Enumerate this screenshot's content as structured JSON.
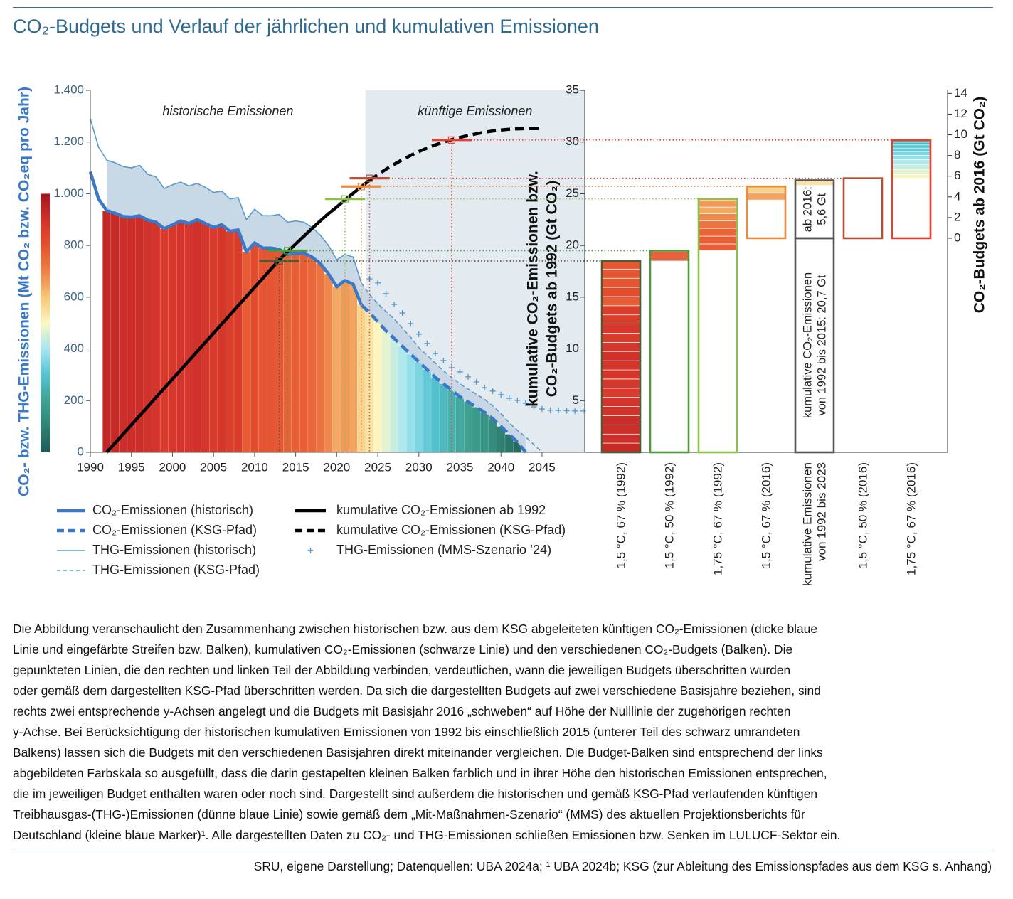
{
  "title": "CO₂-Budgets und Verlauf der jährlichen und kumulativen Emissionen",
  "chart_data": [
    {
      "type": "line",
      "ylabel": "CO₂- bzw. THG-Emissionen (Mt CO₂ bzw. CO₂eq pro Jahr)",
      "annotations": [
        "historische Emissionen",
        "künftige Emissionen"
      ],
      "x": [
        1990,
        1991,
        1992,
        1993,
        1994,
        1995,
        1996,
        1997,
        1998,
        1999,
        2000,
        2001,
        2002,
        2003,
        2004,
        2005,
        2006,
        2007,
        2008,
        2009,
        2010,
        2011,
        2012,
        2013,
        2014,
        2015,
        2016,
        2017,
        2018,
        2019,
        2020,
        2021,
        2022,
        2023,
        2024,
        2025,
        2026,
        2027,
        2028,
        2029,
        2030,
        2031,
        2032,
        2033,
        2034,
        2035,
        2036,
        2037,
        2038,
        2039,
        2040,
        2041,
        2042,
        2043,
        2044,
        2045,
        2046,
        2047,
        2048,
        2049,
        2050
      ],
      "xlim": [
        1990,
        2050.2
      ],
      "xticks": [
        1990,
        1995,
        2000,
        2005,
        2010,
        2015,
        2020,
        2025,
        2030,
        2035,
        2040,
        2045
      ],
      "ylim": [
        0,
        1400
      ],
      "yticks": [
        0,
        200,
        400,
        600,
        800,
        {
          "value": 1000,
          "label": "1.000"
        },
        {
          "value": 1200,
          "label": "1.200"
        },
        {
          "value": 1400,
          "label": "1.400"
        }
      ],
      "y2lim": [
        0,
        35
      ],
      "stripes_from": 1992,
      "shade": "#e3ebf0",
      "colorscale": [
        {
          "value": 0,
          "color": "#1f5b57"
        },
        {
          "value": 100,
          "color": "#2f8272"
        },
        {
          "value": 200,
          "color": "#3fa393"
        },
        {
          "value": 300,
          "color": "#55c3d3"
        },
        {
          "value": 400,
          "color": "#a5e6f0"
        },
        {
          "value": 500,
          "color": "#fdf7c4"
        },
        {
          "value": 600,
          "color": "#f6c577"
        },
        {
          "value": 700,
          "color": "#ee8148"
        },
        {
          "value": 800,
          "color": "#e5502f"
        },
        {
          "value": 900,
          "color": "#d2312a"
        },
        {
          "value": 1000,
          "color": "#a3161f"
        }
      ],
      "series": [
        {
          "name": "CO₂-Emissionen (historisch)",
          "color": "#3a78c8",
          "width": 4.5,
          "dash": false,
          "stripes": true,
          "values": [
            1085,
            980,
            935,
            925,
            912,
            910,
            915,
            898,
            890,
            865,
            880,
            895,
            885,
            900,
            885,
            870,
            880,
            855,
            860,
            775,
            810,
            790,
            790,
            785,
            765,
            770,
            770,
            755,
            730,
            690,
            640,
            665,
            650,
            570,
            null,
            null,
            null,
            null,
            null,
            null,
            null,
            null,
            null,
            null,
            null,
            null,
            null,
            null,
            null,
            null,
            null,
            null,
            null,
            null,
            null,
            null,
            null,
            null,
            null,
            null,
            null
          ]
        },
        {
          "name": "CO₂-Emissionen (KSG-Pfad)",
          "color": "#3a78c8",
          "width": 4.5,
          "dash": true,
          "stripes": true,
          "values": [
            null,
            null,
            null,
            null,
            null,
            null,
            null,
            null,
            null,
            null,
            null,
            null,
            null,
            null,
            null,
            null,
            null,
            null,
            null,
            null,
            null,
            null,
            null,
            null,
            null,
            null,
            null,
            null,
            null,
            null,
            null,
            null,
            null,
            570,
            540,
            505,
            470,
            440,
            410,
            380,
            350,
            320,
            290,
            265,
            240,
            215,
            195,
            175,
            155,
            130,
            100,
            70,
            40,
            0,
            null,
            null,
            null,
            null,
            null,
            null,
            null
          ]
        },
        {
          "name": "THG-Emissionen (historisch)",
          "color": "#5a9acb",
          "width": 1.6,
          "dash": false,
          "band": "#c6d6e4",
          "values": [
            1290,
            1180,
            1130,
            1120,
            1105,
            1100,
            1110,
            1075,
            1065,
            1020,
            1035,
            1045,
            1030,
            1040,
            1025,
            1005,
            1010,
            980,
            985,
            900,
            940,
            915,
            915,
            920,
            890,
            895,
            890,
            870,
            840,
            800,
            745,
            765,
            755,
            655,
            null,
            null,
            null,
            null,
            null,
            null,
            null,
            null,
            null,
            null,
            null,
            null,
            null,
            null,
            null,
            null,
            null,
            null,
            null,
            null,
            null,
            null,
            null,
            null,
            null,
            null,
            null
          ]
        },
        {
          "name": "THG-Emissionen (KSG-Pfad)",
          "color": "#5a9acb",
          "width": 1.6,
          "dash": true,
          "band": "#c6d6e4",
          "values": [
            null,
            null,
            null,
            null,
            null,
            null,
            null,
            null,
            null,
            null,
            null,
            null,
            null,
            null,
            null,
            null,
            null,
            null,
            null,
            null,
            null,
            null,
            null,
            null,
            null,
            null,
            null,
            null,
            null,
            null,
            null,
            null,
            null,
            655,
            610,
            575,
            545,
            515,
            480,
            445,
            405,
            375,
            345,
            315,
            290,
            265,
            245,
            225,
            205,
            180,
            150,
            115,
            85,
            60,
            30,
            0,
            null,
            null,
            null,
            null,
            null
          ]
        },
        {
          "name": "kumulative CO₂-Emissionen ab 1992",
          "color": "#000000",
          "width": 4.5,
          "dash": false,
          "axis": "y2",
          "values": [
            null,
            null,
            0,
            0.89,
            1.77,
            2.66,
            3.54,
            4.43,
            5.32,
            6.2,
            7.09,
            7.97,
            8.86,
            9.75,
            10.63,
            11.52,
            12.4,
            13.29,
            14.18,
            15.06,
            15.95,
            16.83,
            17.72,
            18.6,
            19.38,
            20.15,
            20.9,
            21.65,
            22.38,
            23.08,
            23.72,
            24.4,
            25.05,
            25.68,
            26.3,
            null,
            null,
            null,
            null,
            null,
            null,
            null,
            null,
            null,
            null,
            null,
            null,
            null,
            null,
            null,
            null,
            null,
            null,
            null,
            null,
            null,
            null,
            null,
            null,
            null,
            null
          ]
        },
        {
          "name": "kumulative CO₂-Emissionen (KSG-Pfad)",
          "color": "#000000",
          "width": 4.5,
          "dash": true,
          "axis": "y2",
          "values": [
            null,
            null,
            null,
            null,
            null,
            null,
            null,
            null,
            null,
            null,
            null,
            null,
            null,
            null,
            null,
            null,
            null,
            null,
            null,
            null,
            null,
            null,
            null,
            null,
            null,
            null,
            null,
            null,
            null,
            null,
            null,
            null,
            null,
            null,
            26.3,
            26.85,
            27.37,
            27.85,
            28.3,
            28.71,
            29.08,
            29.42,
            29.72,
            29.99,
            30.23,
            30.44,
            30.63,
            30.8,
            30.95,
            31.07,
            31.17,
            31.24,
            31.28,
            31.3,
            31.3,
            31.3,
            null,
            null,
            null,
            null,
            null
          ]
        },
        {
          "name": "THG-Emissionen (MMS-Szenario ’24)",
          "color": "#5a9acb",
          "markers": "+",
          "values": [
            null,
            null,
            null,
            null,
            null,
            null,
            null,
            null,
            null,
            null,
            null,
            null,
            null,
            null,
            null,
            null,
            null,
            null,
            null,
            null,
            null,
            null,
            null,
            null,
            null,
            null,
            null,
            null,
            null,
            null,
            null,
            null,
            null,
            null,
            671,
            655,
            614,
            572,
            539,
            498,
            457,
            421,
            382,
            355,
            327,
            311,
            292,
            272,
            250,
            237,
            223,
            209,
            201,
            190,
            176,
            168,
            163,
            162,
            161,
            160,
            160
          ]
        }
      ]
    },
    {
      "type": "bar",
      "ylabel": [
        "kumulative CO₂-Emissionen bzw.",
        "CO₂-Budgets ab 1992 (Gt CO₂)"
      ],
      "y2label": "CO₂-Budgets ab 2016 (Gt CO₂)",
      "ylim": [
        0,
        35
      ],
      "yticks": [
        5,
        10,
        15,
        20,
        25,
        30,
        35
      ],
      "y2lim": [
        -20.7,
        14.3
      ],
      "y2ticks": [
        0,
        2,
        4,
        6,
        8,
        10,
        12,
        14
      ],
      "categories": [
        "1,5 °C, 67 % (1992)",
        "1,5 °C, 50 % (1992)",
        "1,75 °C, 67 % (1992)",
        "1,5 °C, 67 % (2016)",
        [
          "kumulative Emissionen",
          "von 1992 bis 2023"
        ],
        "1,5 °C, 50 % (2016)",
        "1,75 °C, 67 % (2016)"
      ],
      "values": [
        18.5,
        19.5,
        24.5,
        5.0,
        [
          20.7,
          5.6
        ],
        5.8,
        9.5
      ],
      "value_labels": [
        null,
        null,
        null,
        null,
        [
          [
            "kumulative CO₂-Emissionen",
            "von 1992 bis 2015: 20,7 Gt"
          ],
          [
            "ab 2016:",
            "5,6 Gt"
          ]
        ],
        null,
        null
      ],
      "axis": [
        "y",
        "y",
        "y",
        "y2",
        "y",
        "y2",
        "y2"
      ],
      "colors": [
        "#4e5a34",
        "#4f9a3a",
        "#8cc04a",
        "#ef8a3a",
        "#555555",
        "#b5503a",
        "#e4402e"
      ],
      "fill_from": [
        0,
        18.5,
        19.5,
        3.7,
        25.8,
        null,
        5.8
      ],
      "exceeded": [
        2013,
        2014,
        2021,
        2023,
        null,
        2024,
        2034
      ]
    }
  ],
  "caption": [
    "Die Abbildung veranschaulicht den Zusammenhang zwischen historischen bzw. aus dem KSG abgeleiteten künftigen CO₂-Emissionen (dicke blaue",
    "Linie und eingefärbte Streifen bzw. Balken), kumulativen CO₂-Emissionen (schwarze Linie) und den verschiedenen CO₂-Budgets (Balken). Die",
    "gepunkteten Linien, die den rechten und linken Teil der Abbildung verbinden, verdeutlichen, wann die jeweiligen Budgets überschritten wurden",
    "oder gemäß dem dargestellten KSG-Pfad überschritten werden. Da sich die dargestellten Budgets auf zwei verschiedene Basisjahre beziehen, sind",
    "rechts zwei entsprechende y-Achsen angelegt und die Budgets mit Basisjahr 2016 „schweben“ auf Höhe der Nulllinie der zugehörigen rechten",
    "y-Achse. Bei Berücksichtigung der historischen kumulativen Emissionen von 1992 bis einschließlich 2015 (unterer Teil des schwarz umrandeten",
    "Balkens) lassen sich die Budgets mit den verschiedenen Basisjahren direkt miteinander vergleichen. Die Budget-Balken sind entsprechend der links",
    "abgebildeten Farbskala so ausgefüllt, dass die darin gestapelten kleinen Balken farblich und in ihrer Höhe den historischen Emissionen entsprechen,",
    "die im jeweiligen Budget enthalten waren oder noch sind. Dargestellt sind außerdem die historischen und gemäß KSG-Pfad verlaufenden künftigen",
    "Treibhausgas-(THG-)Emissionen (dünne blaue Linie) sowie gemäß dem „Mit-Maßnahmen-Szenario“ (MMS) des aktuellen Projektionsberichts für",
    "Deutschland (kleine blaue Marker)¹. Alle dargestellten Daten zu CO₂- und THG-Emissionen schließen Emissionen bzw. Senken im LULUCF-Sektor ein."
  ],
  "source": "SRU, eigene Darstellung; Datenquellen: UBA 2024a; ¹ UBA 2024b; KSG (zur Ableitung des Emissionspfades aus dem KSG s. Anhang)"
}
